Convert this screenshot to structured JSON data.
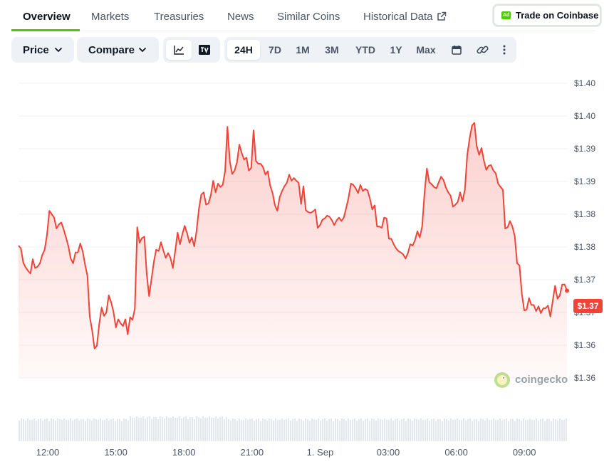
{
  "tabs": [
    {
      "label": "Overview",
      "active": true
    },
    {
      "label": "Markets"
    },
    {
      "label": "Treasuries"
    },
    {
      "label": "News"
    },
    {
      "label": "Similar Coins"
    },
    {
      "label": "Historical Data",
      "icon": "external-link-icon"
    }
  ],
  "trade_button": {
    "badge": "Ad",
    "label": "Trade on Coinbase",
    "badge_color": "#4bcc00"
  },
  "toolbar": {
    "price_dropdown": "Price",
    "compare_dropdown": "Compare",
    "chart_view_icons": [
      "line-chart-icon",
      "tradingview-icon"
    ],
    "ranges": [
      "24H",
      "7D",
      "1M",
      "3M",
      "YTD",
      "1Y",
      "Max"
    ],
    "active_range": "24H",
    "extra_icons": [
      "calendar-icon",
      "link-icon",
      "more-icon"
    ]
  },
  "current_price": "$1.37",
  "watermark": "coingecko",
  "colors": {
    "line": "#f04438",
    "accent": "#4bcc00",
    "price_tag": "#f04438"
  },
  "chart_data": {
    "type": "area",
    "y_tick_labels": [
      "$1.40",
      "$1.40",
      "$1.39",
      "$1.39",
      "$1.38",
      "$1.38",
      "$1.37",
      "$1.37",
      "$1.36",
      "$1.36"
    ],
    "x_tick_labels": [
      "12:00",
      "15:00",
      "18:00",
      "21:00",
      "1. Sep",
      "03:00",
      "06:00",
      "09:00"
    ],
    "ylim": [
      1.3584,
      1.4016
    ],
    "grid": true,
    "y": [
      1.3778,
      1.3774,
      1.3753,
      1.3746,
      1.3741,
      1.3737,
      1.3758,
      1.3745,
      1.3747,
      1.3752,
      1.3764,
      1.3772,
      1.3794,
      1.3829,
      1.3824,
      1.3819,
      1.3803,
      1.3809,
      1.3812,
      1.3802,
      1.379,
      1.3777,
      1.3759,
      1.3752,
      1.3768,
      1.3768,
      1.3781,
      1.377,
      1.3751,
      1.3734,
      1.3674,
      1.3654,
      1.3627,
      1.3631,
      1.3663,
      1.3687,
      1.3675,
      1.368,
      1.3705,
      1.3695,
      1.3681,
      1.3658,
      1.367,
      1.3664,
      1.366,
      1.367,
      1.3648,
      1.3673,
      1.3669,
      1.3685,
      1.3805,
      1.3782,
      1.3789,
      1.3791,
      1.3736,
      1.3704,
      1.3729,
      1.3754,
      1.3772,
      1.377,
      1.3783,
      1.3771,
      1.376,
      1.3767,
      1.376,
      1.3745,
      1.377,
      1.3797,
      1.378,
      1.3795,
      1.3807,
      1.3796,
      1.3782,
      1.379,
      1.3777,
      1.38,
      1.3832,
      1.3853,
      1.3856,
      1.3838,
      1.384,
      1.3852,
      1.3873,
      1.3856,
      1.3869,
      1.3864,
      1.3867,
      1.3887,
      1.3952,
      1.3901,
      1.3883,
      1.3888,
      1.39,
      1.3926,
      1.3914,
      1.3904,
      1.3907,
      1.3888,
      1.3892,
      1.3947,
      1.3902,
      1.3898,
      1.3898,
      1.3893,
      1.3882,
      1.3887,
      1.3866,
      1.3855,
      1.3837,
      1.3829,
      1.3849,
      1.3858,
      1.3865,
      1.387,
      1.3882,
      1.3873,
      1.3877,
      1.3873,
      1.387,
      1.3839,
      1.3865,
      1.383,
      1.3827,
      1.3826,
      1.3828,
      1.3831,
      1.3804,
      1.3808,
      1.3816,
      1.3818,
      1.3822,
      1.382,
      1.3815,
      1.3808,
      1.3815,
      1.3819,
      1.3814,
      1.3819,
      1.3833,
      1.3848,
      1.3869,
      1.3867,
      1.3862,
      1.3855,
      1.3867,
      1.3858,
      1.3861,
      1.3859,
      1.3847,
      1.3831,
      1.3837,
      1.3806,
      1.3806,
      1.3804,
      1.3819,
      1.3818,
      1.3788,
      1.3788,
      1.378,
      1.3774,
      1.377,
      1.3768,
      1.3765,
      1.3759,
      1.3767,
      1.378,
      1.3778,
      1.3786,
      1.3799,
      1.379,
      1.3806,
      1.3855,
      1.3891,
      1.3871,
      1.3868,
      1.3864,
      1.3862,
      1.3871,
      1.3879,
      1.3874,
      1.3863,
      1.3856,
      1.3851,
      1.3835,
      1.3838,
      1.3842,
      1.3856,
      1.3843,
      1.386,
      1.3911,
      1.3935,
      1.3954,
      1.3958,
      1.3924,
      1.3911,
      1.3921,
      1.3903,
      1.3889,
      1.3895,
      1.3896,
      1.3888,
      1.3884,
      1.3869,
      1.3864,
      1.386,
      1.3803,
      1.3805,
      1.3814,
      1.3806,
      1.3792,
      1.3752,
      1.3749,
      1.3707,
      1.3683,
      1.3684,
      1.3701,
      1.3691,
      1.3691,
      1.3682,
      1.3689,
      1.3679,
      1.3686,
      1.3686,
      1.369,
      1.3674,
      1.3697,
      1.3719,
      1.37,
      1.3705,
      1.3721,
      1.3721,
      1.3712
    ]
  }
}
